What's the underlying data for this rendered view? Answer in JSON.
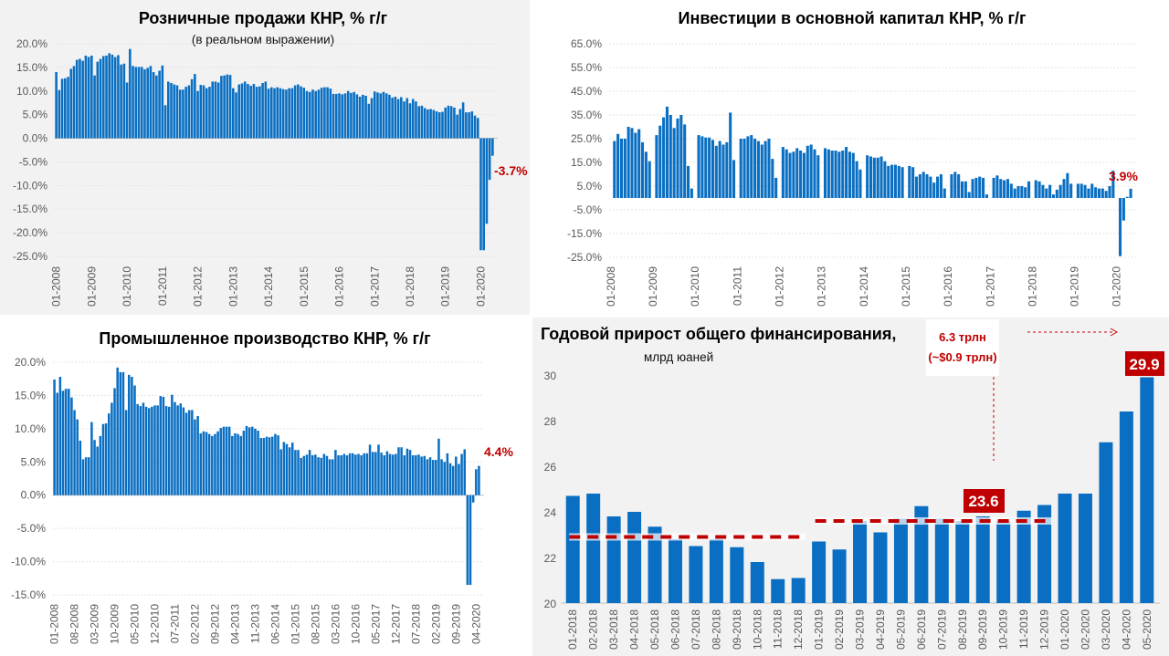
{
  "chart_data": [
    {
      "type": "bar",
      "title": "Розничные продажи КНР, % г/г",
      "subtitle": "(в реальном выражении)",
      "x_start": "01-2008",
      "x_tick_labels": [
        "01-2008",
        "01-2009",
        "01-2010",
        "01-2011",
        "01-2012",
        "01-2013",
        "01-2014",
        "01-2015",
        "01-2016",
        "01-2017",
        "01-2018",
        "01-2019",
        "01-2020"
      ],
      "y_ticks": [
        20,
        15,
        10,
        5,
        0,
        -5,
        -10,
        -15,
        -20,
        -25
      ],
      "y_tick_labels": [
        "20.0%",
        "15.0%",
        "10.0%",
        "5.0%",
        "0.0%",
        "-5.0%",
        "-10.0%",
        "-15.0%",
        "-20.0%",
        "-25.0%"
      ],
      "ylim": [
        -25,
        20
      ],
      "grid": true,
      "last_value_label": "-3.7%",
      "values": [
        14.0,
        10.2,
        12.6,
        12.7,
        13.0,
        14.7,
        15.3,
        16.6,
        16.8,
        16.4,
        17.5,
        17.2,
        17.5,
        13.3,
        16.2,
        16.8,
        17.4,
        17.5,
        18.0,
        17.7,
        17.2,
        17.6,
        15.6,
        15.8,
        11.8,
        18.9,
        15.3,
        15.1,
        15.1,
        15.1,
        14.6,
        14.9,
        15.3,
        14.0,
        13.3,
        14.3,
        15.4,
        7.0,
        12.0,
        11.7,
        11.4,
        11.2,
        10.3,
        10.3,
        10.9,
        11.2,
        12.5,
        13.6,
        10.0,
        11.3,
        11.2,
        10.6,
        10.9,
        12.0,
        12.0,
        11.8,
        13.2,
        13.3,
        13.5,
        13.4,
        10.6,
        9.7,
        11.4,
        11.6,
        12.0,
        11.5,
        11.1,
        11.5,
        10.9,
        11.0,
        11.7,
        12.0,
        10.5,
        10.8,
        10.6,
        10.8,
        10.6,
        10.4,
        10.3,
        10.6,
        10.6,
        11.2,
        11.4,
        11.0,
        10.7,
        10.0,
        9.8,
        10.3,
        10.0,
        10.3,
        10.7,
        10.8,
        10.8,
        10.5,
        9.4,
        9.4,
        9.5,
        9.3,
        9.5,
        10.0,
        9.6,
        9.8,
        9.3,
        8.8,
        9.2,
        9.0,
        7.3,
        8.5,
        9.9,
        9.7,
        9.5,
        9.8,
        9.5,
        9.2,
        8.6,
        8.8,
        8.3,
        8.7,
        7.8,
        8.5,
        7.4,
        8.3,
        7.8,
        6.8,
        6.9,
        6.4,
        6.1,
        6.2,
        6.0,
        5.7,
        5.5,
        5.6,
        6.5,
        6.9,
        6.8,
        6.5,
        5.0,
        6.2,
        7.6,
        5.5,
        5.5,
        5.7,
        4.8,
        4.3,
        -23.7,
        -23.7,
        -18.1,
        -8.8,
        -3.7
      ]
    },
    {
      "type": "bar",
      "title": "Инвестиции в основной капитал КНР, % г/г",
      "x_start": "01-2008",
      "x_tick_labels": [
        "01-2008",
        "01-2009",
        "01-2010",
        "01-2011",
        "01-2012",
        "01-2013",
        "01-2014",
        "01-2015",
        "01-2016",
        "01-2017",
        "01-2018",
        "01-2019",
        "01-2020"
      ],
      "y_ticks": [
        65,
        55,
        45,
        35,
        25,
        15,
        5,
        -5,
        -15,
        -25
      ],
      "y_tick_labels": [
        "65.0%",
        "55.0%",
        "45.0%",
        "35.0%",
        "25.0%",
        "15.0%",
        "5.0%",
        "-5.0%",
        "-15.0%",
        "-25.0%"
      ],
      "ylim": [
        -25,
        65
      ],
      "grid": true,
      "last_value_label": "3.9%",
      "values": [
        null,
        24,
        27,
        25,
        25,
        30,
        29.5,
        27.5,
        29,
        23.5,
        19.5,
        15.5,
        null,
        26.5,
        30.5,
        34,
        38.5,
        35,
        29.5,
        33.5,
        35,
        31,
        13.5,
        4,
        null,
        26.5,
        26,
        25.5,
        25.5,
        24.5,
        22,
        24,
        22.5,
        23.5,
        36,
        16,
        null,
        25,
        25,
        26,
        26.5,
        25,
        24,
        22.5,
        24,
        25,
        16.5,
        8.5,
        null,
        21.5,
        20.5,
        19,
        19.5,
        21,
        20,
        19,
        22,
        22.5,
        20.5,
        18,
        null,
        21,
        20.5,
        20,
        20,
        19.5,
        20,
        21.5,
        19.5,
        19,
        15.5,
        12,
        null,
        18,
        17.5,
        17,
        17,
        17.5,
        15.5,
        13.5,
        14,
        14,
        13.5,
        13,
        null,
        13.5,
        13,
        9,
        10,
        11,
        10,
        9,
        6.5,
        9,
        10,
        4,
        null,
        10,
        11,
        10,
        7,
        7,
        2.5,
        8,
        8.5,
        9,
        8.5,
        1.5,
        null,
        8.5,
        9.5,
        8,
        7.5,
        8,
        6,
        4,
        5,
        5,
        4.5,
        7,
        null,
        7.5,
        7,
        5.5,
        4,
        5.5,
        1.5,
        3.5,
        5.5,
        8,
        10.5,
        6,
        null,
        6,
        6,
        5.5,
        4,
        6,
        4.5,
        4,
        4,
        3,
        5,
        11.5,
        null,
        -24.5,
        -9.5,
        0.5,
        3.9
      ]
    },
    {
      "type": "bar",
      "title": "Промышленное производство КНР, % г/г",
      "x_start": "01-2008",
      "x_tick_labels": [
        "01-2008",
        "08-2008",
        "03-2009",
        "10-2009",
        "05-2010",
        "12-2010",
        "07-2011",
        "02-2012",
        "09-2012",
        "04-2013",
        "11-2013",
        "06-2014",
        "01-2015",
        "08-2015",
        "03-2016",
        "10-2016",
        "05-2017",
        "12-2017",
        "07-2018",
        "02-2019",
        "09-2019",
        "04-2020"
      ],
      "y_ticks": [
        20,
        15,
        10,
        5,
        0,
        -5,
        -10,
        -15
      ],
      "y_tick_labels": [
        "20.0%",
        "15.0%",
        "10.0%",
        "5.0%",
        "0.0%",
        "-5.0%",
        "-10.0%",
        "-15.0%"
      ],
      "ylim": [
        -15,
        20
      ],
      "grid": true,
      "last_value_label": "4.4%",
      "values": [
        17.4,
        15.4,
        17.8,
        15.7,
        16.0,
        16.0,
        14.7,
        12.8,
        11.4,
        8.2,
        5.4,
        5.7,
        5.7,
        11.0,
        8.3,
        7.3,
        8.9,
        10.7,
        10.8,
        12.3,
        13.9,
        16.1,
        19.2,
        18.5,
        18.5,
        12.8,
        18.1,
        17.8,
        16.5,
        13.7,
        13.4,
        13.9,
        13.3,
        13.1,
        13.3,
        13.5,
        13.5,
        14.9,
        14.8,
        13.4,
        13.3,
        15.1,
        14.0,
        13.5,
        13.8,
        13.2,
        12.4,
        12.8,
        12.8,
        11.4,
        11.9,
        9.3,
        9.6,
        9.5,
        9.2,
        8.9,
        9.2,
        9.6,
        10.1,
        10.3,
        10.3,
        10.3,
        8.9,
        9.3,
        9.2,
        8.9,
        9.7,
        10.4,
        10.2,
        10.3,
        10.0,
        9.7,
        8.6,
        8.6,
        8.8,
        8.7,
        8.8,
        9.2,
        9.0,
        6.9,
        8.0,
        7.7,
        7.2,
        7.9,
        6.8,
        6.8,
        5.6,
        5.9,
        6.1,
        6.8,
        6.0,
        6.1,
        5.7,
        5.6,
        6.2,
        5.9,
        5.4,
        5.4,
        6.8,
        6.0,
        6.0,
        6.2,
        6.0,
        6.3,
        6.3,
        6.1,
        6.2,
        6.0,
        6.3,
        6.3,
        7.6,
        6.5,
        6.5,
        7.6,
        6.4,
        6.0,
        6.6,
        6.2,
        6.1,
        6.2,
        7.2,
        7.2,
        6.0,
        7.0,
        6.8,
        6.0,
        6.0,
        6.1,
        5.8,
        5.9,
        5.4,
        5.7,
        5.3,
        5.3,
        8.5,
        5.4,
        5.0,
        6.3,
        4.8,
        4.4,
        5.8,
        4.7,
        6.2,
        6.9,
        -13.5,
        -13.5,
        -1.1,
        3.9,
        4.4
      ]
    },
    {
      "type": "bar",
      "title": "Годовой прирост общего финансирования,",
      "subtitle": "млрд юаней",
      "categories": [
        "01-2018",
        "02-2018",
        "03-2018",
        "04-2018",
        "05-2018",
        "06-2018",
        "07-2018",
        "08-2018",
        "09-2018",
        "10-2018",
        "11-2018",
        "12-2018",
        "01-2019",
        "02-2019",
        "03-2019",
        "04-2019",
        "05-2019",
        "06-2019",
        "07-2019",
        "08-2019",
        "09-2019",
        "10-2019",
        "11-2019",
        "12-2019",
        "01-2020",
        "02-2020",
        "03-2020",
        "04-2020",
        "05-2020"
      ],
      "values": [
        24.7,
        24.8,
        23.8,
        24.0,
        23.35,
        22.8,
        22.5,
        22.8,
        22.45,
        21.8,
        21.05,
        21.1,
        22.7,
        22.35,
        23.6,
        23.1,
        23.7,
        24.25,
        23.7,
        23.6,
        23.8,
        23.6,
        24.05,
        24.3,
        24.8,
        24.8,
        27.05,
        28.4,
        29.9
      ],
      "y_ticks": [
        20,
        22,
        24,
        26,
        28,
        30
      ],
      "y_tick_labels": [
        "20",
        "22",
        "24",
        "26",
        "28",
        "30"
      ],
      "ylim": [
        20,
        30
      ],
      "grid": false,
      "averages": [
        {
          "from": "01-2018",
          "to": "12-2018",
          "value": 22.9
        },
        {
          "from": "01-2019",
          "to": "12-2019",
          "value": 23.6
        }
      ],
      "average_label": "23.6",
      "last_value_label": "29.9",
      "annotation_line1": "6.3 трлн",
      "annotation_line2": "(~$0.9 трлн)"
    }
  ],
  "colors": {
    "bar": "#0a6fc2",
    "highlight": "#c00000",
    "panel_gray": "#f2f2f2"
  }
}
